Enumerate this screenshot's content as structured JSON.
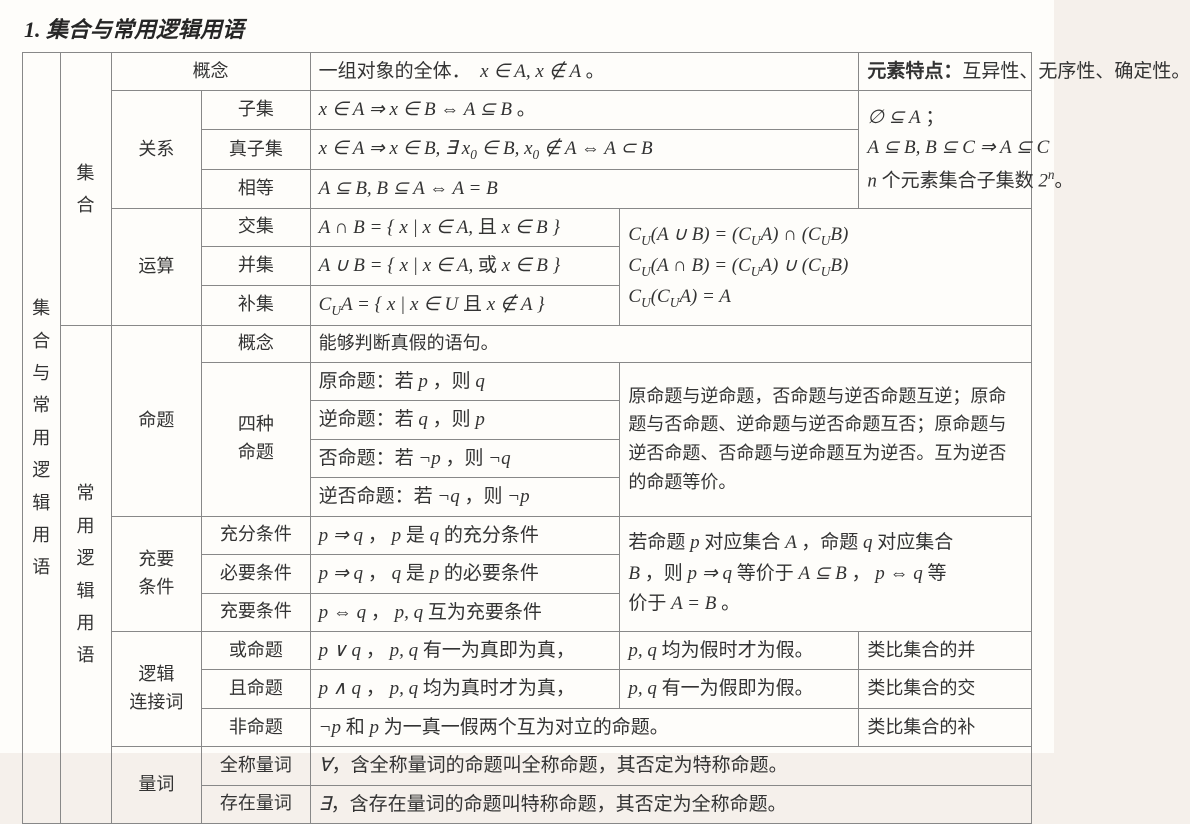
{
  "title": "1. 集合与常用逻辑用语",
  "v1": "集合与常用逻辑用语",
  "v2a": "集合",
  "v2b": "常用逻辑用语",
  "r1c1": "概念",
  "r1c2_html": "<span class='cn'>一组对象的全体．</span>&nbsp;&nbsp;x ∈ A, x ∉ A <span class='cn'>。</span>",
  "r1c3_html": "<b class='cn'>元素特点：</b><span class='cn'>互异性、无序性、确定性。</span>",
  "r2c1": "关系",
  "r2a": "子集",
  "r2b_html": "x ∈ A ⇒ x ∈ B ⇔ A ⊆ B&nbsp;<span class='cn'>。</span>",
  "r3a": "真子集",
  "r3b_html": "x ∈ A ⇒ x ∈ B, ∃ x<span class='sub'>0</span> ∈ B, x<span class='sub'>0</span> ∉ A ⇔ A ⊂ B",
  "r4a": "相等",
  "r4b_html": "A ⊆ B, B ⊆ A ⇔ A = B",
  "rel_side_html": "∅ ⊆ A&nbsp;<span class='cn'>；</span><br>A ⊆ B, B ⊆ C ⇒ A ⊆ C<br>n <span class='cn'>个元素集合子集数</span> 2<span class='sup'>n</span><span class='cn'>。</span>",
  "r5c1": "运算",
  "r5a": "交集",
  "r5b_html": "A ∩ B = { x | x ∈ A, <span class='cn'>且</span> x ∈ B }",
  "r6a": "并集",
  "r6b_html": "A ∪ B = { x | x ∈ A, <span class='cn'>或</span> x ∈ B }",
  "r7a": "补集",
  "r7b_html": "C<span class='sub'>U</span>A = { x | x ∈ U <span class='cn'>且</span> x ∉ A }",
  "op_side_html": "C<span class='sub'>U</span>(A ∪ B) = (C<span class='sub'>U</span>A) ∩ (C<span class='sub'>U</span>B)<br>C<span class='sub'>U</span>(A ∩ B) = (C<span class='sub'>U</span>A) ∪ (C<span class='sub'>U</span>B)<br>C<span class='sub'>U</span>(C<span class='sub'>U</span>A) = A",
  "s2c1": "命题",
  "s2r1a": "概念",
  "s2r1b": "能够判断真假的语句。",
  "s2r2a_html": "四种<br>命题",
  "s2r2b_html": "<span class='cn'>原命题：若</span> p <span class='cn'>，则</span> q",
  "s2r3b_html": "<span class='cn'>逆命题：若</span> q <span class='cn'>，则</span> p",
  "s2r4b_html": "<span class='cn'>否命题：若</span> ¬p <span class='cn'>，则</span> ¬q",
  "s2r5b_html": "<span class='cn'>逆否命题：若</span> ¬q <span class='cn'>，则</span> ¬p",
  "prop_side": "原命题与逆命题，否命题与逆否命题互逆；原命题与否命题、逆命题与逆否命题互否；原命题与逆否命题、否命题与逆命题互为逆否。互为逆否的命题等价。",
  "s3c1_html": "充要<br>条件",
  "s3r1a": "充分条件",
  "s3r1b_html": "p ⇒ q <span class='cn'>，</span> p <span class='cn'>是</span> q <span class='cn'>的充分条件</span>",
  "s3r2a": "必要条件",
  "s3r2b_html": "p ⇒ q <span class='cn'>，</span> q <span class='cn'>是</span> p <span class='cn'>的必要条件</span>",
  "s3r3a": "充要条件",
  "s3r3b_html": "p ⇔ q <span class='cn'>，</span> p, q <span class='cn'>互为充要条件</span>",
  "cond_side_html": "<span class='cn'>若命题</span> p <span class='cn'>对应集合</span> A <span class='cn'>，命题</span> q <span class='cn'>对应集合</span><br>B <span class='cn'>，则</span> p ⇒ q <span class='cn'>等价于</span> A ⊆ B <span class='cn'>，</span> p ⇔ q <span class='cn'>等</span><br><span class='cn'>价于</span> A = B <span class='cn'>。</span>",
  "s4c1_html": "逻辑<br>连接词",
  "s4r1a": "或命题",
  "s4r1b_html": "p ∨ q <span class='cn'>，</span> p, q <span class='cn'>有一为真即为真，</span>",
  "s4r1c_html": "p, q <span class='cn'>均为假时才为假。</span>",
  "s4r1d": "类比集合的并",
  "s4r2a": "且命题",
  "s4r2b_html": "p ∧ q <span class='cn'>，</span> p, q <span class='cn'>均为真时才为真，</span>",
  "s4r2c_html": "p, q <span class='cn'>有一为假即为假。</span>",
  "s4r2d": "类比集合的交",
  "s4r3a": "非命题",
  "s4r3b_html": "¬p <span class='cn'>和</span> p <span class='cn'>为一真一假两个互为对立的命题。</span>",
  "s4r3d": "类比集合的补",
  "s5c1": "量词",
  "s5r1a": "全称量词",
  "s5r1b_html": "∀<span class='cn'>，含全称量词的命题叫全称命题，其否定为特称命题。</span>",
  "s5r2a": "存在量词",
  "s5r2b_html": "∃<span class='cn'>，含存在量词的命题叫特称命题，其否定为全称命题。</span>"
}
